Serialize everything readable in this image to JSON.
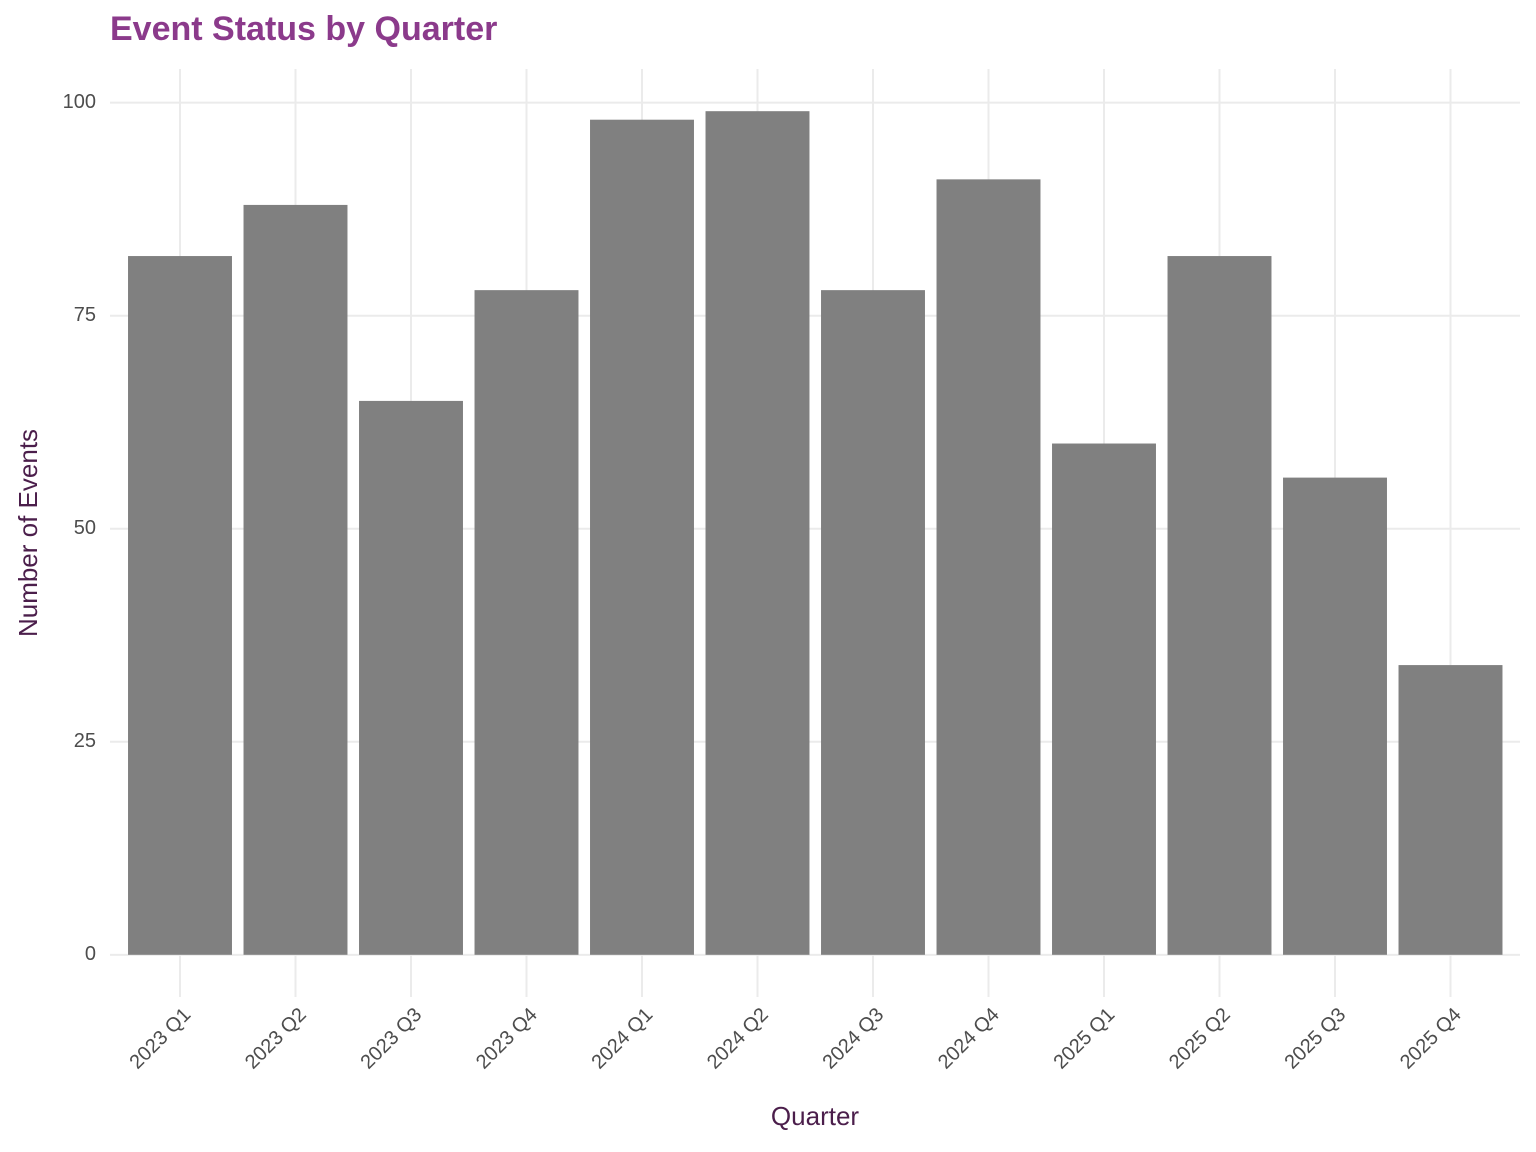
{
  "chart_data": {
    "type": "bar",
    "title": "Event Status by Quarter",
    "x_label": "Quarter",
    "y_label": "Number of Events",
    "categories": [
      "2023 Q1",
      "2023 Q2",
      "2023 Q3",
      "2023 Q4",
      "2024 Q1",
      "2024 Q2",
      "2024 Q3",
      "2024 Q4",
      "2025 Q1",
      "2025 Q2",
      "2025 Q3",
      "2025 Q4"
    ],
    "values": [
      82,
      88,
      65,
      78,
      98,
      99,
      78,
      91,
      60,
      82,
      56,
      34
    ],
    "color": "#808080",
    "ylim": [
      -4.95,
      103.95
    ],
    "yticks": [
      0,
      25,
      50,
      75,
      100
    ],
    "grid": true
  }
}
